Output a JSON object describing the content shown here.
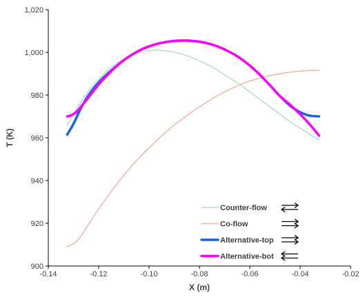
{
  "chart_data": {
    "type": "line",
    "title": "",
    "xlabel": "X (m)",
    "ylabel": "T (K)",
    "xlim": [
      -0.14,
      -0.02
    ],
    "ylim": [
      900,
      1020
    ],
    "xticks": [
      -0.14,
      -0.12,
      -0.1,
      -0.08,
      -0.06,
      -0.04,
      -0.02
    ],
    "xtick_labels": [
      "-0.14",
      "-0.12",
      "-0.10",
      "-0.08",
      "-0.06",
      "-0.04",
      "-0.02"
    ],
    "yticks": [
      900,
      920,
      940,
      960,
      980,
      1000,
      1020
    ],
    "ytick_labels": [
      "900",
      "920",
      "940",
      "960",
      "980",
      "1,000",
      "1,020"
    ],
    "grid": false,
    "legend_position": "bottom-right",
    "series": [
      {
        "name": "Counter-flow",
        "color": "#b7dfc4",
        "line_width": 1.5,
        "flow_icon": "arrows-opposite-right-left",
        "x": [
          -0.1325,
          -0.128,
          -0.124,
          -0.12,
          -0.116,
          -0.112,
          -0.108,
          -0.104,
          -0.1,
          -0.096,
          -0.092,
          -0.088,
          -0.084,
          -0.08,
          -0.076,
          -0.072,
          -0.068,
          -0.064,
          -0.06,
          -0.056,
          -0.052,
          -0.048,
          -0.044,
          -0.04,
          -0.036,
          -0.0325
        ],
        "y": [
          966,
          975,
          982,
          987.5,
          992,
          995.5,
          998.2,
          1000,
          1000.8,
          1001,
          1000.5,
          999.5,
          998,
          996,
          993.8,
          991,
          988,
          985,
          981.5,
          978,
          974.5,
          971,
          967.5,
          964.5,
          961.5,
          959
        ]
      },
      {
        "name": "Co-flow",
        "color": "#f4b4a6",
        "line_width": 1.5,
        "flow_icon": "arrows-parallel-right",
        "x": [
          -0.1325,
          -0.13,
          -0.127,
          -0.124,
          -0.121,
          -0.118,
          -0.114,
          -0.11,
          -0.106,
          -0.102,
          -0.098,
          -0.094,
          -0.09,
          -0.086,
          -0.082,
          -0.078,
          -0.074,
          -0.07,
          -0.066,
          -0.062,
          -0.058,
          -0.054,
          -0.05,
          -0.046,
          -0.042,
          -0.038,
          -0.0325
        ],
        "y": [
          909,
          910.5,
          914,
          919.5,
          925,
          930,
          936.5,
          942.5,
          948,
          953,
          957.5,
          962,
          966,
          969.5,
          973,
          976,
          979,
          981.5,
          983.8,
          985.8,
          987.3,
          988.6,
          989.6,
          990.4,
          991,
          991.4,
          991.6
        ]
      },
      {
        "name": "Alternative-top",
        "color": "#1565e0",
        "line_width": 3.5,
        "flow_icon": "arrows-parallel-right",
        "x": [
          -0.1325,
          -0.13,
          -0.127,
          -0.124,
          -0.12,
          -0.116,
          -0.112,
          -0.108,
          -0.104,
          -0.1,
          -0.096,
          -0.092,
          -0.088,
          -0.084,
          -0.08,
          -0.076,
          -0.072,
          -0.068,
          -0.064,
          -0.06,
          -0.056,
          -0.052,
          -0.048,
          -0.044,
          -0.04,
          -0.037,
          -0.035,
          -0.0325
        ],
        "y": [
          961.5,
          966.5,
          974,
          980,
          986,
          990.5,
          994.5,
          998,
          1000.8,
          1002.8,
          1004.2,
          1005.1,
          1005.5,
          1005.5,
          1005,
          1004,
          1002.4,
          1000.2,
          997.4,
          993.8,
          989.5,
          984.6,
          979.5,
          975,
          972,
          970.6,
          970.2,
          970
        ]
      },
      {
        "name": "Alternative-bot",
        "color": "#ff00ff",
        "line_width": 3.5,
        "flow_icon": "arrows-parallel-left",
        "x": [
          -0.1325,
          -0.131,
          -0.129,
          -0.126,
          -0.123,
          -0.12,
          -0.116,
          -0.112,
          -0.108,
          -0.104,
          -0.1,
          -0.096,
          -0.092,
          -0.088,
          -0.084,
          -0.08,
          -0.076,
          -0.072,
          -0.068,
          -0.064,
          -0.06,
          -0.056,
          -0.052,
          -0.048,
          -0.044,
          -0.04,
          -0.036,
          -0.0325
        ],
        "y": [
          970,
          970.5,
          972,
          976,
          980.5,
          985,
          990,
          994.5,
          998,
          1000.8,
          1002.8,
          1004.2,
          1005.1,
          1005.5,
          1005.5,
          1005,
          1004,
          1002.4,
          1000.2,
          997.4,
          993.8,
          989.5,
          984.6,
          979.5,
          975.5,
          971,
          966,
          961
        ]
      }
    ]
  }
}
